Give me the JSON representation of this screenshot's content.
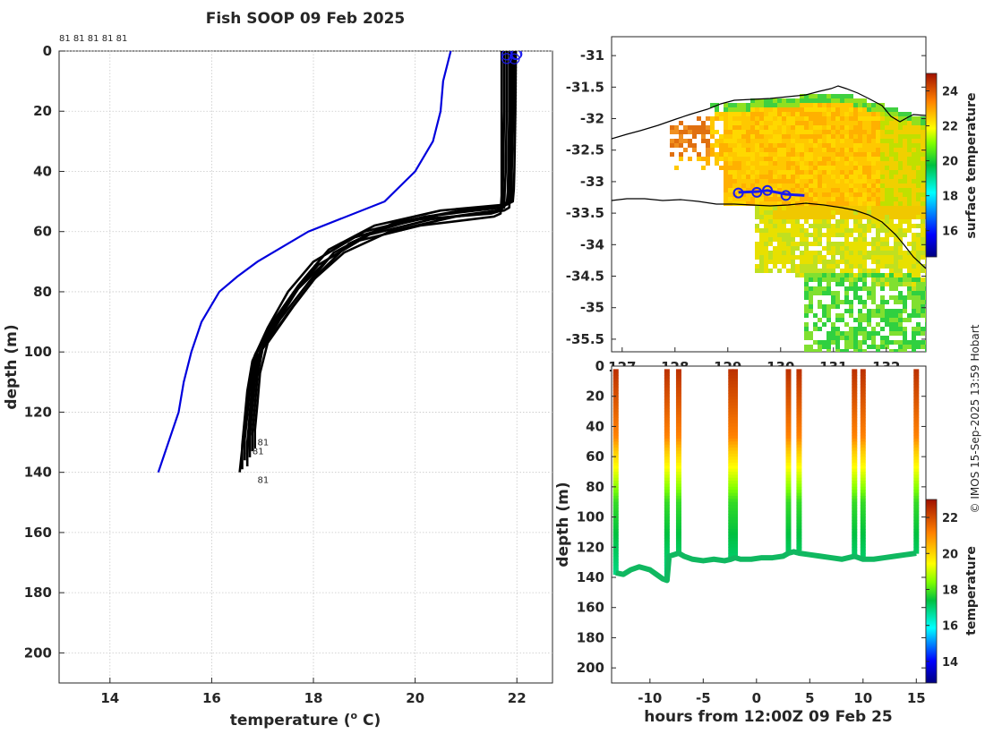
{
  "title": "Fish SOOP 09 Feb 2025",
  "credit": "© IMOS 15-Sep-2025 13:59 Hobart",
  "colors": {
    "climatology": "#0000dd",
    "profile": "#000000",
    "marker": "#1a1aee",
    "land_outline": "#000000"
  },
  "chart_data": [
    {
      "id": "profile",
      "type": "line",
      "xlabel": "temperature (",
      "xlabel_sup": "o",
      "xlabel_end": " C)",
      "ylabel": "depth (m)",
      "xlim": [
        13,
        22.7
      ],
      "ylim": [
        210,
        0
      ],
      "xticks": [
        14,
        16,
        18,
        20,
        22
      ],
      "yticks": [
        0,
        20,
        40,
        60,
        80,
        100,
        120,
        140,
        160,
        180,
        200
      ],
      "grid": true,
      "top_label": "81 81 81 81 81",
      "end_labels": [
        {
          "text": "81",
          "x": 16.9,
          "y": 131
        },
        {
          "text": "81",
          "x": 16.8,
          "y": 134
        },
        {
          "text": "81",
          "x": 16.9,
          "y": 143.5
        }
      ],
      "climatology": {
        "name": "climatology",
        "depth": [
          0,
          10,
          20,
          30,
          40,
          50,
          60,
          70,
          75,
          80,
          90,
          100,
          110,
          120,
          130,
          140
        ],
        "temp": [
          20.7,
          20.55,
          20.5,
          20.35,
          20.0,
          19.4,
          17.9,
          16.9,
          16.5,
          16.15,
          15.8,
          15.6,
          15.45,
          15.35,
          15.15,
          14.95
        ]
      },
      "profiles": [
        {
          "temp": [
            21.98,
            21.97,
            21.95,
            21.94,
            21.92,
            21.8,
            20.5,
            19.2,
            18.3,
            17.8,
            17.3,
            16.9,
            16.8,
            16.75,
            16.72,
            16.7
          ],
          "depth": [
            0,
            20,
            40,
            46,
            50,
            51,
            53,
            58,
            66,
            76,
            88,
            100,
            110,
            120,
            128,
            134
          ]
        },
        {
          "temp": [
            21.85,
            21.85,
            21.83,
            21.82,
            21.8,
            21.7,
            20.2,
            19.0,
            18.2,
            17.7,
            17.2,
            16.85,
            16.75,
            16.7,
            16.65,
            16.65
          ],
          "depth": [
            0,
            20,
            40,
            47,
            51,
            52,
            55,
            60,
            68,
            78,
            90,
            101,
            112,
            121,
            129,
            136
          ]
        },
        {
          "temp": [
            21.92,
            21.9,
            21.88,
            21.86,
            21.85,
            21.75,
            20.8,
            19.5,
            18.6,
            18.0,
            17.5,
            17.0,
            16.9,
            16.85,
            16.8,
            16.8
          ],
          "depth": [
            0,
            20,
            40,
            47,
            52,
            53,
            55,
            60,
            67,
            76,
            87,
            99,
            108,
            118,
            127,
            133
          ]
        },
        {
          "temp": [
            21.75,
            21.75,
            21.73,
            21.72,
            21.7,
            21.5,
            20.0,
            18.8,
            18.0,
            17.5,
            17.1,
            16.8,
            16.7,
            16.65,
            16.6,
            16.6
          ],
          "depth": [
            0,
            20,
            40,
            48,
            53,
            54,
            56,
            62,
            70,
            80,
            92,
            103,
            113,
            122,
            131,
            139
          ]
        },
        {
          "temp": [
            21.88,
            21.87,
            21.85,
            21.84,
            21.82,
            21.7,
            20.6,
            19.3,
            18.4,
            17.9,
            17.35,
            16.95,
            16.85,
            16.8,
            16.75,
            16.75
          ],
          "depth": [
            0,
            20,
            40,
            46,
            50,
            52,
            54,
            59,
            67,
            77,
            89,
            100,
            110,
            119,
            128,
            135
          ]
        },
        {
          "temp": [
            21.8,
            21.8,
            21.78,
            21.76,
            21.75,
            21.6,
            20.3,
            19.1,
            18.3,
            17.7,
            17.25,
            16.9,
            16.8,
            16.75,
            16.7,
            16.7
          ],
          "depth": [
            0,
            20,
            40,
            47,
            52,
            53,
            56,
            61,
            69,
            79,
            91,
            102,
            112,
            121,
            130,
            138
          ]
        },
        {
          "temp": [
            21.95,
            21.93,
            21.9,
            21.9,
            21.88,
            21.8,
            20.9,
            19.6,
            18.7,
            18.1,
            17.6,
            17.1,
            16.95,
            16.9,
            16.85,
            16.85
          ],
          "depth": [
            0,
            20,
            40,
            46,
            50,
            51,
            53,
            57,
            64,
            74,
            85,
            97,
            107,
            117,
            126,
            132
          ]
        },
        {
          "temp": [
            21.7,
            21.7,
            21.7,
            21.7,
            21.68,
            21.55,
            20.1,
            18.9,
            18.1,
            17.6,
            17.15,
            16.85,
            16.7,
            16.65,
            16.6,
            16.55
          ],
          "depth": [
            0,
            20,
            40,
            48,
            54,
            55,
            58,
            63,
            71,
            81,
            93,
            104,
            114,
            123,
            132,
            140
          ]
        }
      ],
      "surface_markers": [
        {
          "temp": 21.8,
          "depth": 2.5
        },
        {
          "temp": 21.8,
          "depth": 1.3
        },
        {
          "temp": 21.98,
          "depth": 1.2
        },
        {
          "temp": 21.95,
          "depth": 2.6
        },
        {
          "temp": 22.0,
          "depth": 1.0
        }
      ]
    },
    {
      "id": "map",
      "type": "heatmap",
      "title": "",
      "ylabel_ticks": [
        -31,
        -31.5,
        -32,
        -32.5,
        -33,
        -33.5,
        -34,
        -34.5,
        -35,
        -35.5
      ],
      "xticks": [
        127,
        128,
        129,
        130,
        131,
        132
      ],
      "xlim": [
        126.8,
        132.75
      ],
      "ylim": [
        -35.7,
        -30.7
      ],
      "colorbar": {
        "label": "surface temperature",
        "range": [
          14.5,
          25
        ],
        "ticks": [
          16,
          18,
          20,
          22,
          24
        ]
      },
      "track": {
        "lon": [
          129.2,
          129.55,
          129.75,
          130.1,
          130.45
        ],
        "lat": [
          -33.17,
          -33.16,
          -33.14,
          -33.2,
          -33.22
        ]
      },
      "track_circles": [
        {
          "lon": 129.2,
          "lat": -33.18
        },
        {
          "lon": 129.55,
          "lat": -33.17
        },
        {
          "lon": 129.75,
          "lat": -33.14
        },
        {
          "lon": 130.1,
          "lat": -33.22
        }
      ]
    },
    {
      "id": "section",
      "type": "scatter",
      "xlabel": "hours from 12:00Z 09 Feb 25",
      "ylabel": "depth (m)",
      "xlim": [
        -13.6,
        15.9
      ],
      "ylim": [
        210,
        0
      ],
      "xticks": [
        -10,
        -5,
        0,
        5,
        10,
        15
      ],
      "yticks": [
        0,
        20,
        40,
        60,
        80,
        100,
        120,
        140,
        160,
        180,
        200
      ],
      "colorbar": {
        "label": "temperature",
        "range": [
          12.8,
          23
        ],
        "ticks": [
          14,
          16,
          18,
          20,
          22
        ]
      },
      "casts": [
        {
          "hour": -13.2,
          "bottom_depth": 137
        },
        {
          "hour": -8.4,
          "bottom_depth": 140
        },
        {
          "hour": -7.3,
          "bottom_depth": 124
        },
        {
          "hour": -2.4,
          "bottom_depth": 128
        },
        {
          "hour": -2.0,
          "bottom_depth": 127
        },
        {
          "hour": 3.0,
          "bottom_depth": 124
        },
        {
          "hour": 4.0,
          "bottom_depth": 122
        },
        {
          "hour": 9.2,
          "bottom_depth": 126
        },
        {
          "hour": 10.0,
          "bottom_depth": 126
        },
        {
          "hour": 15.0,
          "bottom_depth": 124
        }
      ],
      "bottom_track": {
        "hour": [
          -13.2,
          -12.5,
          -11.8,
          -11.0,
          -10.5,
          -10.0,
          -9.4,
          -8.8,
          -8.4,
          -8.2,
          -7.3,
          -6.8,
          -6.0,
          -5.0,
          -4.0,
          -3.0,
          -2.4,
          -2.0,
          -1.5,
          -0.5,
          0.5,
          1.5,
          2.5,
          3.0,
          3.5,
          4.0,
          5.0,
          6.0,
          7.0,
          8.0,
          9.2,
          10.0,
          11.0,
          12.0,
          13.0,
          14.0,
          15.0
        ],
        "depth": [
          137,
          138,
          135,
          133,
          134,
          135,
          138,
          141,
          142,
          126,
          124,
          126,
          128,
          129,
          128,
          129,
          128,
          127,
          128,
          128,
          127,
          127,
          126,
          124,
          123,
          124,
          125,
          126,
          127,
          128,
          126,
          128,
          128,
          127,
          126,
          125,
          124
        ]
      }
    }
  ]
}
